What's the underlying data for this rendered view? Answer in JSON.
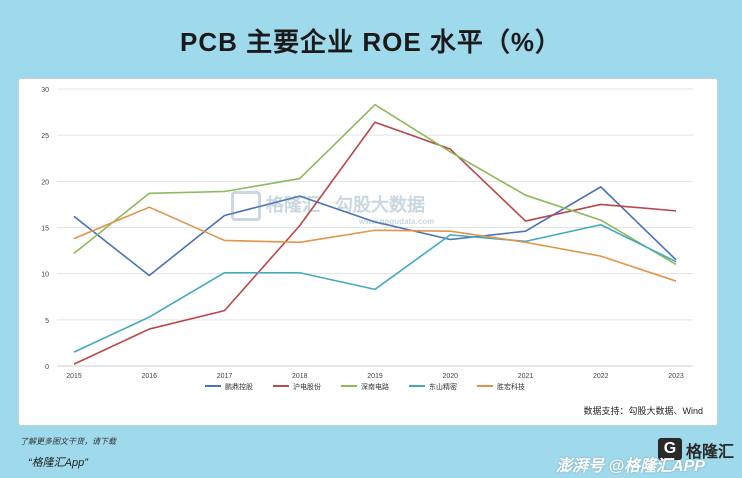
{
  "title": "PCB 主要企业 ROE 水平（%）",
  "chart_data": {
    "type": "line",
    "title": "PCB 主要企业 ROE 水平（%）",
    "categories": [
      "2015",
      "2016",
      "2017",
      "2018",
      "2019",
      "2020",
      "2021",
      "2022",
      "2023"
    ],
    "ylim": [
      0,
      30
    ],
    "yticks": [
      0,
      5,
      10,
      15,
      20,
      25,
      30
    ],
    "grid": true,
    "legend_position": "bottom",
    "series": [
      {
        "name": "鹏鼎控股",
        "color": "#4a72b8",
        "values": [
          16.2,
          9.8,
          16.3,
          18.4,
          15.6,
          13.7,
          14.6,
          19.4,
          11.5
        ]
      },
      {
        "name": "沪电股份",
        "color": "#b8474a",
        "values": [
          0.2,
          4.0,
          6.0,
          15.2,
          26.4,
          23.5,
          15.7,
          17.5,
          16.8
        ]
      },
      {
        "name": "深南电路",
        "color": "#8bba5a",
        "values": [
          12.2,
          18.7,
          18.9,
          20.3,
          28.3,
          23.2,
          18.5,
          15.8,
          11.0
        ]
      },
      {
        "name": "东山精密",
        "color": "#43a9c0",
        "values": [
          1.5,
          5.3,
          10.1,
          10.1,
          8.3,
          14.2,
          13.5,
          15.3,
          11.3
        ]
      },
      {
        "name": "胜宏科技",
        "color": "#e0954a",
        "values": [
          13.8,
          17.2,
          13.6,
          13.4,
          14.7,
          14.6,
          13.4,
          11.9,
          9.2
        ]
      }
    ]
  },
  "source": "数据支持：勾股大数据、Wind",
  "chart_watermark": {
    "brand": "格隆汇",
    "name": "勾股大数据",
    "url": "www.gogudata.com"
  },
  "footnote_line1": "了解更多图文干货，请下载",
  "footnote_line2": "“格隆汇App”",
  "watermark_logo": "G",
  "watermark_brand": "格隆汇",
  "watermark_bottom": "澎湃号 @格隆汇APP"
}
